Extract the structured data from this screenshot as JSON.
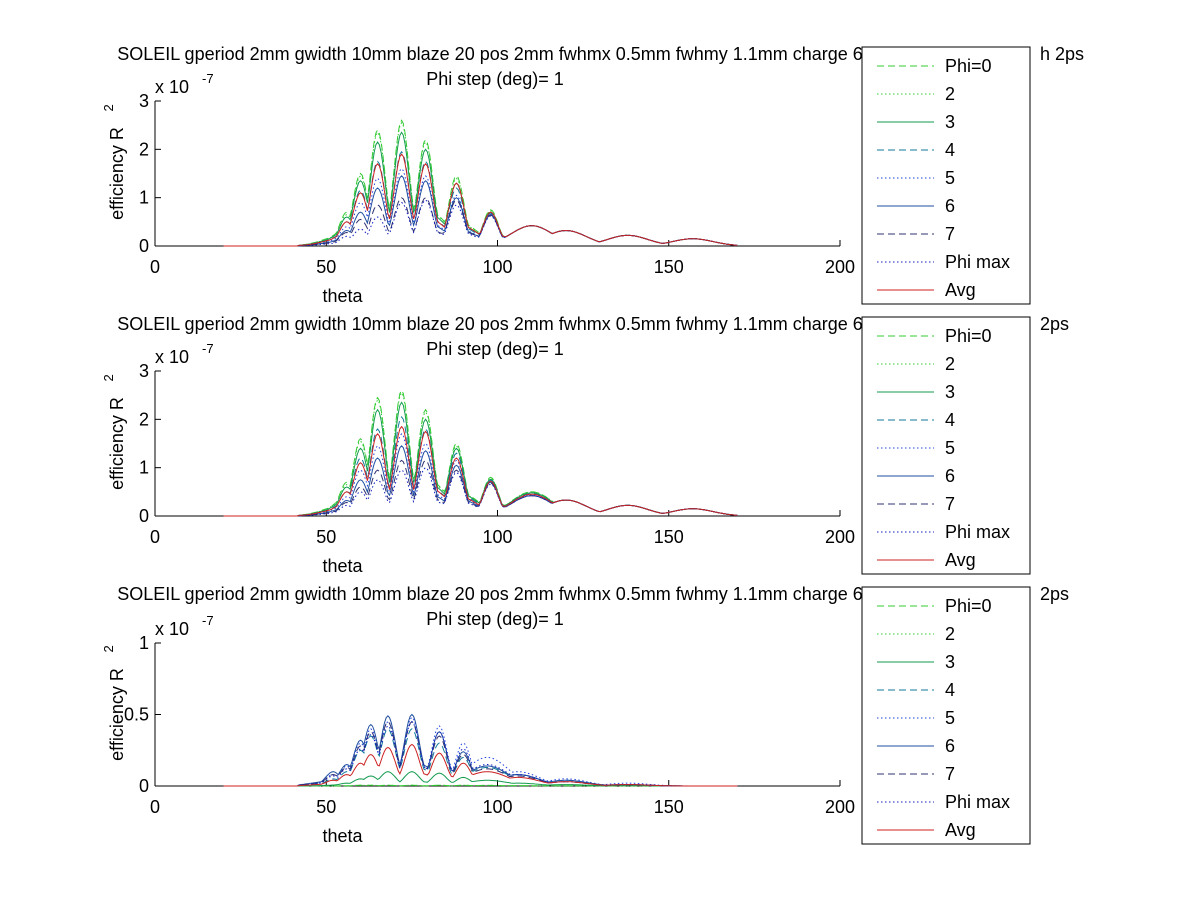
{
  "figure": {
    "legend_entries": [
      "Phi=0",
      "2",
      "3",
      "4",
      "5",
      "6",
      "7",
      "Phi max",
      "Avg"
    ],
    "series_colors": [
      "#33cc33",
      "#33cc33",
      "#139b4f",
      "#117a9a",
      "#2244dd",
      "#1f4fa0",
      "#303070",
      "#1020c0",
      "#cc2222"
    ],
    "series_dash": [
      "dashed",
      "dotted",
      "solid",
      "dashed",
      "dotted",
      "solid",
      "dashed",
      "dotted",
      "solid"
    ]
  },
  "chart_data": [
    {
      "type": "line",
      "title": "SOLEIL gperiod 2mm gwidth 10mm blaze 20 pos 2mm fwhmx 0.5mm fwhmy 1.1mm charge 6",
      "title_tail": "h 2ps",
      "subtitle": "Phi step (deg)= 1",
      "xlabel": "theta",
      "ylabel": "efficiency R",
      "ylabel_sup": "2",
      "exponent_label": "x 10",
      "exponent_sup": "-7",
      "xlim": [
        0,
        200
      ],
      "ylim": [
        0,
        3
      ],
      "xticks": [
        "0",
        "50",
        "100",
        "150",
        "200"
      ],
      "yticks": [
        "0",
        "1",
        "2",
        "3"
      ],
      "ytick_values": [
        0,
        1,
        2,
        3
      ],
      "peaks_theta": [
        52,
        56,
        60,
        65,
        72,
        79,
        88,
        98,
        110,
        120,
        138,
        157
      ],
      "peaks_by_series": [
        [
          0.15,
          0.7,
          1.5,
          2.4,
          2.6,
          2.2,
          1.45,
          0.75,
          0.42,
          0.32,
          0.22,
          0.15
        ],
        [
          0.14,
          0.65,
          1.45,
          2.35,
          2.55,
          2.15,
          1.4,
          0.73,
          0.42,
          0.32,
          0.22,
          0.15
        ],
        [
          0.12,
          0.6,
          1.35,
          2.15,
          2.35,
          2.0,
          1.3,
          0.7,
          0.42,
          0.32,
          0.22,
          0.15
        ],
        [
          0.1,
          0.5,
          1.15,
          1.75,
          1.95,
          1.75,
          1.2,
          0.68,
          0.42,
          0.32,
          0.22,
          0.15
        ],
        [
          0.08,
          0.4,
          0.9,
          1.4,
          1.6,
          1.45,
          1.05,
          0.66,
          0.42,
          0.32,
          0.22,
          0.15
        ],
        [
          0.07,
          0.32,
          0.7,
          1.2,
          1.45,
          1.35,
          1.0,
          0.65,
          0.42,
          0.32,
          0.22,
          0.15
        ],
        [
          0.06,
          0.28,
          0.55,
          0.85,
          1.0,
          1.0,
          0.95,
          0.64,
          0.42,
          0.32,
          0.22,
          0.15
        ],
        [
          0.05,
          0.2,
          0.35,
          0.6,
          0.9,
          0.95,
          0.85,
          0.62,
          0.42,
          0.32,
          0.22,
          0.15
        ],
        [
          0.1,
          0.5,
          1.1,
          1.7,
          1.9,
          1.7,
          1.3,
          0.7,
          0.42,
          0.32,
          0.22,
          0.15
        ]
      ]
    },
    {
      "type": "line",
      "title": "SOLEIL gperiod 2mm gwidth 10mm blaze 20 pos 2mm fwhmx 0.5mm fwhmy 1.1mm charge 6",
      "title_tail": "2ps",
      "subtitle": "Phi step (deg)= 1",
      "xlabel": "theta",
      "ylabel": "efficiency R",
      "ylabel_sup": "2",
      "exponent_label": "x 10",
      "exponent_sup": "-7",
      "xlim": [
        0,
        200
      ],
      "ylim": [
        0,
        3
      ],
      "xticks": [
        "0",
        "50",
        "100",
        "150",
        "200"
      ],
      "yticks": [
        "0",
        "1",
        "2",
        "3"
      ],
      "ytick_values": [
        0,
        1,
        2,
        3
      ],
      "peaks_theta": [
        52,
        56,
        60,
        65,
        72,
        79,
        88,
        98,
        110,
        120,
        138,
        157
      ],
      "peaks_by_series": [
        [
          0.15,
          0.7,
          1.6,
          2.45,
          2.6,
          2.2,
          1.5,
          0.8,
          0.5,
          0.33,
          0.22,
          0.15
        ],
        [
          0.14,
          0.65,
          1.55,
          2.4,
          2.55,
          2.15,
          1.45,
          0.78,
          0.5,
          0.33,
          0.22,
          0.15
        ],
        [
          0.12,
          0.6,
          1.4,
          2.2,
          2.35,
          2.0,
          1.4,
          0.76,
          0.48,
          0.33,
          0.22,
          0.15
        ],
        [
          0.1,
          0.5,
          1.2,
          1.8,
          2.05,
          1.8,
          1.3,
          0.74,
          0.46,
          0.33,
          0.22,
          0.15
        ],
        [
          0.08,
          0.4,
          0.95,
          1.45,
          1.7,
          1.5,
          1.15,
          0.72,
          0.44,
          0.33,
          0.22,
          0.15
        ],
        [
          0.07,
          0.32,
          0.75,
          1.2,
          1.45,
          1.35,
          1.05,
          0.7,
          0.42,
          0.33,
          0.22,
          0.15
        ],
        [
          0.06,
          0.28,
          0.6,
          0.95,
          1.15,
          1.15,
          0.95,
          0.68,
          0.42,
          0.33,
          0.22,
          0.15
        ],
        [
          0.05,
          0.22,
          0.5,
          0.75,
          0.95,
          1.0,
          0.9,
          0.66,
          0.42,
          0.33,
          0.22,
          0.15
        ],
        [
          0.1,
          0.5,
          1.1,
          1.7,
          1.85,
          1.75,
          1.2,
          0.72,
          0.45,
          0.33,
          0.22,
          0.15
        ]
      ]
    },
    {
      "type": "line",
      "title": "SOLEIL gperiod 2mm gwidth 10mm blaze 20 pos 2mm fwhmx 0.5mm fwhmy 1.1mm charge 6",
      "title_tail": "2ps",
      "subtitle": "Phi step (deg)= 1",
      "xlabel": "theta",
      "ylabel": "efficiency R",
      "ylabel_sup": "2",
      "exponent_label": "x 10",
      "exponent_sup": "-7",
      "xlim": [
        0,
        200
      ],
      "ylim": [
        0,
        1
      ],
      "xticks": [
        "0",
        "50",
        "100",
        "150",
        "200"
      ],
      "yticks": [
        "0",
        "0.5",
        "1"
      ],
      "ytick_values": [
        0,
        0.5,
        1
      ],
      "peaks_theta": [
        52,
        56,
        60,
        63,
        68,
        75,
        83,
        90,
        97,
        106,
        120,
        138
      ],
      "peaks_by_series": [
        [
          0.0,
          0.0,
          0.005,
          0.005,
          0.005,
          0.005,
          0.005,
          0.005,
          0.004,
          0.003,
          0.002,
          0.001
        ],
        [
          0.0,
          0.0,
          0.005,
          0.005,
          0.005,
          0.005,
          0.005,
          0.005,
          0.004,
          0.003,
          0.002,
          0.001
        ],
        [
          0.005,
          0.02,
          0.05,
          0.07,
          0.1,
          0.1,
          0.09,
          0.06,
          0.04,
          0.02,
          0.01,
          0.005
        ],
        [
          0.05,
          0.1,
          0.25,
          0.35,
          0.4,
          0.4,
          0.3,
          0.2,
          0.13,
          0.08,
          0.04,
          0.01
        ],
        [
          0.08,
          0.14,
          0.3,
          0.4,
          0.45,
          0.48,
          0.42,
          0.3,
          0.2,
          0.1,
          0.05,
          0.02
        ],
        [
          0.1,
          0.15,
          0.32,
          0.43,
          0.49,
          0.5,
          0.38,
          0.24,
          0.14,
          0.08,
          0.04,
          0.01
        ],
        [
          0.08,
          0.13,
          0.28,
          0.38,
          0.45,
          0.45,
          0.35,
          0.22,
          0.12,
          0.07,
          0.03,
          0.01
        ],
        [
          0.07,
          0.12,
          0.26,
          0.36,
          0.42,
          0.45,
          0.38,
          0.26,
          0.15,
          0.08,
          0.03,
          0.01
        ],
        [
          0.04,
          0.08,
          0.16,
          0.22,
          0.27,
          0.29,
          0.23,
          0.16,
          0.1,
          0.06,
          0.03,
          0.01
        ]
      ]
    }
  ]
}
